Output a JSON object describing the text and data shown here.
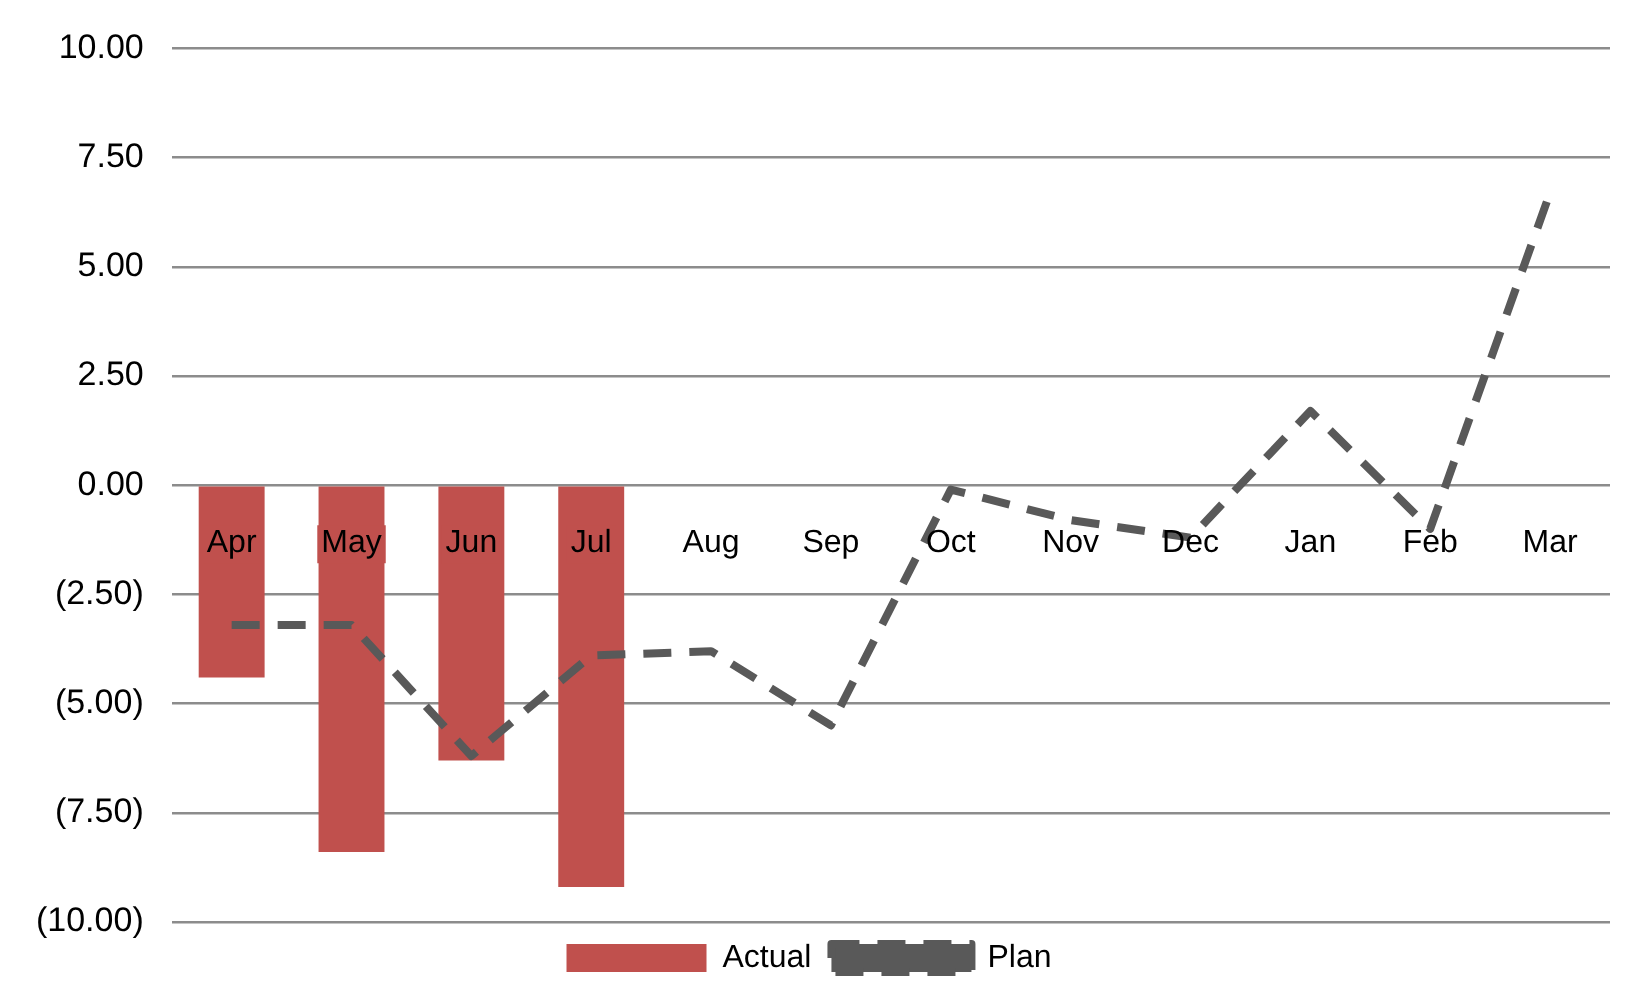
{
  "chart_data": {
    "type": "bar",
    "categories": [
      "Apr",
      "May",
      "Jun",
      "Jul",
      "Aug",
      "Sep",
      "Oct",
      "Nov",
      "Dec",
      "Jan",
      "Feb",
      "Mar"
    ],
    "series": [
      {
        "name": "Actual",
        "type": "bar",
        "color": "#c0504d",
        "values": [
          -4.4,
          -8.4,
          -6.3,
          -9.2,
          null,
          null,
          null,
          null,
          null,
          null,
          null,
          null
        ]
      },
      {
        "name": "Plan",
        "type": "line",
        "color": "#595959",
        "line_style": "dashed",
        "marker": "none",
        "values": [
          -3.2,
          -3.2,
          -6.2,
          -3.9,
          -3.8,
          -5.5,
          -0.1,
          -0.8,
          -1.2,
          1.7,
          -1.0,
          6.7
        ]
      }
    ],
    "ylim": [
      -10,
      10
    ],
    "yticks": [
      {
        "value": -10,
        "label": "(10.00)"
      },
      {
        "value": -7.5,
        "label": "(7.50)"
      },
      {
        "value": -5,
        "label": "(5.00)"
      },
      {
        "value": -2.5,
        "label": "(2.50)"
      },
      {
        "value": 0,
        "label": "0.00"
      },
      {
        "value": 2.5,
        "label": "2.50"
      },
      {
        "value": 5,
        "label": "5.00"
      },
      {
        "value": 7.5,
        "label": "7.50"
      },
      {
        "value": 10,
        "label": "10.00"
      }
    ],
    "grid": "y",
    "legend": "bottom"
  }
}
